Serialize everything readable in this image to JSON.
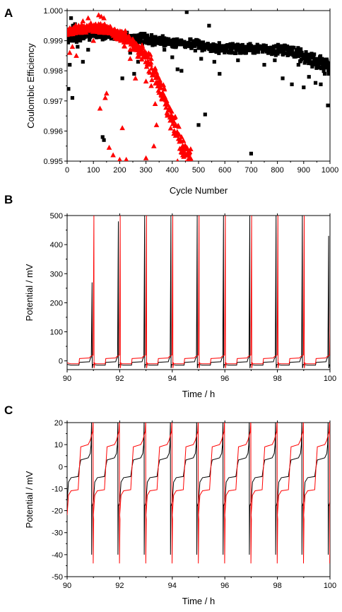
{
  "chart_data": [
    {
      "panel": "A",
      "type": "scatter",
      "xlabel": "Cycle Number",
      "ylabel": "Coulombic Efficiency",
      "xlim": [
        0,
        1000
      ],
      "ylim": [
        0.995,
        1.0
      ],
      "xticks": [
        0,
        100,
        200,
        300,
        400,
        500,
        600,
        700,
        800,
        900,
        1000
      ],
      "yticks": [
        "0.995",
        "0.996",
        "0.997",
        "0.998",
        "0.999",
        "1.000"
      ],
      "series": [
        {
          "color": "#000000",
          "marker": "square",
          "trend": [
            [
              0,
              0.99905
            ],
            [
              100,
              0.99925
            ],
            [
              200,
              0.99915
            ],
            [
              300,
              0.99905
            ],
            [
              400,
              0.99895
            ],
            [
              500,
              0.99885
            ],
            [
              600,
              0.99875
            ],
            [
              700,
              0.99875
            ],
            [
              800,
              0.9987
            ],
            [
              850,
              0.99865
            ],
            [
              900,
              0.9985
            ],
            [
              950,
              0.9983
            ],
            [
              990,
              0.9982
            ]
          ],
          "outliers": [
            [
              5,
              0.9974
            ],
            [
              10,
              0.9982
            ],
            [
              15,
              0.99975
            ],
            [
              22,
              0.9995
            ],
            [
              30,
              0.99955
            ],
            [
              20,
              0.9971
            ],
            [
              40,
              0.9988
            ],
            [
              60,
              0.9983
            ],
            [
              80,
              0.9987
            ],
            [
              135,
              0.9958
            ],
            [
              140,
              0.9957
            ],
            [
              210,
              0.99775
            ],
            [
              240,
              0.9986
            ],
            [
              255,
              0.9979
            ],
            [
              270,
              0.9983
            ],
            [
              300,
              0.99895
            ],
            [
              325,
              0.99885
            ],
            [
              340,
              0.99895
            ],
            [
              355,
              0.9989
            ],
            [
              370,
              0.9987
            ],
            [
              400,
              0.99845
            ],
            [
              420,
              0.99805
            ],
            [
              435,
              0.998
            ],
            [
              455,
              0.99995
            ],
            [
              470,
              0.99905
            ],
            [
              500,
              0.9962
            ],
            [
              510,
              0.9984
            ],
            [
              525,
              0.99655
            ],
            [
              540,
              0.9995
            ],
            [
              560,
              0.9983
            ],
            [
              580,
              0.9979
            ],
            [
              620,
              0.9986
            ],
            [
              650,
              0.99835
            ],
            [
              700,
              0.99525
            ],
            [
              750,
              0.9982
            ],
            [
              790,
              0.99835
            ],
            [
              820,
              0.99775
            ],
            [
              855,
              0.99755
            ],
            [
              880,
              0.9982
            ],
            [
              900,
              0.99745
            ],
            [
              920,
              0.9978
            ],
            [
              945,
              0.9976
            ],
            [
              965,
              0.99755
            ],
            [
              980,
              0.9979
            ],
            [
              992,
              0.99685
            ],
            [
              995,
              0.9979
            ]
          ]
        },
        {
          "color": "#ff0000",
          "marker": "triangle",
          "trend": [
            [
              0,
              0.9993
            ],
            [
              50,
              0.9994
            ],
            [
              100,
              0.99945
            ],
            [
              150,
              0.9994
            ],
            [
              200,
              0.99915
            ],
            [
              250,
              0.9989
            ],
            [
              300,
              0.9985
            ],
            [
              350,
              0.9976
            ],
            [
              380,
              0.9968
            ],
            [
              400,
              0.99635
            ],
            [
              420,
              0.99585
            ],
            [
              440,
              0.99545
            ],
            [
              460,
              0.9951
            ]
          ],
          "outliers": [
            [
              10,
              0.9986
            ],
            [
              20,
              0.9988
            ],
            [
              35,
              0.9985
            ],
            [
              60,
              0.99965
            ],
            [
              80,
              0.99975
            ],
            [
              100,
              0.999
            ],
            [
              120,
              0.99985
            ],
            [
              130,
              0.9998
            ],
            [
              140,
              0.99975
            ],
            [
              145,
              0.9971
            ],
            [
              150,
              0.99725
            ],
            [
              125,
              0.99675
            ],
            [
              160,
              0.99545
            ],
            [
              175,
              0.9952
            ],
            [
              200,
              0.99505
            ],
            [
              210,
              0.9961
            ],
            [
              225,
              0.99505
            ],
            [
              240,
              0.9984
            ],
            [
              260,
              0.99775
            ],
            [
              300,
              0.99765
            ],
            [
              320,
              0.9975
            ],
            [
              335,
              0.9969
            ],
            [
              300,
              0.9951
            ],
            [
              330,
              0.9955
            ],
            [
              340,
              0.9962
            ],
            [
              420,
              0.995
            ],
            [
              440,
              0.9952
            ],
            [
              460,
              0.9953
            ],
            [
              470,
              0.9954
            ]
          ]
        }
      ]
    },
    {
      "panel": "B",
      "type": "line",
      "xlabel": "Time / h",
      "ylabel": "Potential / mV",
      "xlim": [
        90,
        100
      ],
      "ylim": [
        -30,
        500
      ],
      "xticks": [
        90,
        92,
        94,
        96,
        98,
        100
      ],
      "yticks": [
        0,
        100,
        200,
        300,
        400,
        500
      ],
      "series": [
        {
          "color": "#000000",
          "cycle_start": 90.0,
          "period": 1.0,
          "plateau_low": -15,
          "plateau_high": 13,
          "step_mid": -5,
          "spike_offset": 0.95,
          "spike_peaks": [
            270,
            480,
            500,
            500,
            500,
            500,
            500,
            500,
            500,
            430
          ]
        },
        {
          "color": "#ff0000",
          "cycle_start": 90.0,
          "period": 1.0,
          "plateau_low": -10,
          "plateau_high": 20,
          "step_mid": 8,
          "spike_offset": 1.02,
          "spike_peaks": [
            500,
            500,
            500,
            500,
            500,
            500,
            500,
            500,
            500,
            230
          ]
        }
      ]
    },
    {
      "panel": "C",
      "type": "line",
      "xlabel": "Time / h",
      "ylabel": "Potential / mV",
      "xlim": [
        90,
        100
      ],
      "ylim": [
        -50,
        20
      ],
      "xticks": [
        90,
        92,
        94,
        96,
        98,
        100
      ],
      "yticks": [
        -50,
        -40,
        -30,
        -20,
        -10,
        0,
        10,
        20
      ],
      "series": [
        {
          "color": "#000000",
          "levels": [
            -4,
            4
          ],
          "dip": -40,
          "spike_offset": 0.93
        },
        {
          "color": "#ff0000",
          "levels": [
            -10,
            10
          ],
          "dip": -44,
          "spike_offset": 0.99
        }
      ]
    }
  ]
}
